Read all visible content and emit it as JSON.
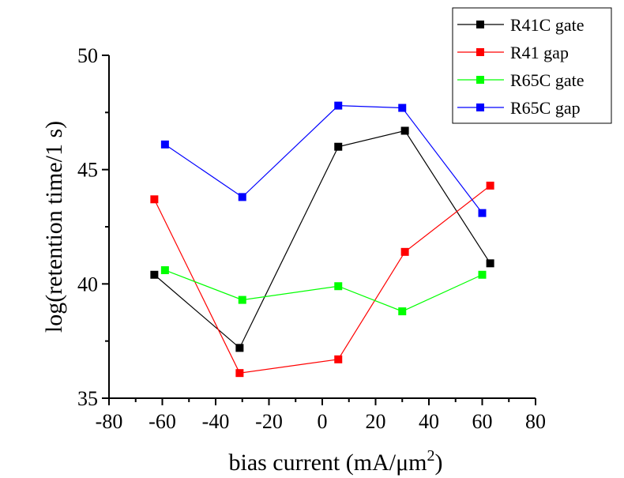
{
  "chart_data": {
    "type": "line",
    "title": "",
    "xlabel": "bias current (mA/μm",
    "xlabel_superscript": "2",
    "xlabel_suffix": ")",
    "ylabel": "log(retention time/1 s)",
    "xlim": [
      -80,
      80
    ],
    "ylim": [
      35,
      50
    ],
    "x_ticks": [
      "-80",
      "-60",
      "-40",
      "-20",
      "0",
      "20",
      "40",
      "60",
      "80"
    ],
    "y_ticks": [
      "35",
      "40",
      "45",
      "50"
    ],
    "grid": false,
    "legend_position": "top-right",
    "series": [
      {
        "name": "R41C gate",
        "color": "#000000",
        "marker": "square",
        "x": [
          -63,
          -31,
          6,
          31,
          63
        ],
        "y": [
          40.4,
          37.2,
          46.0,
          46.7,
          40.9
        ]
      },
      {
        "name": "R41 gap",
        "color": "#ff0000",
        "marker": "square",
        "x": [
          -63,
          -31,
          6,
          31,
          63
        ],
        "y": [
          43.7,
          36.1,
          36.7,
          41.4,
          44.3
        ]
      },
      {
        "name": "R65C gate",
        "color": "#00ff00",
        "marker": "square",
        "x": [
          -59,
          -30,
          6,
          30,
          60
        ],
        "y": [
          40.6,
          39.3,
          39.9,
          38.8,
          40.4
        ]
      },
      {
        "name": "R65C gap",
        "color": "#0000ff",
        "marker": "square",
        "x": [
          -59,
          -30,
          6,
          30,
          60
        ],
        "y": [
          46.1,
          43.8,
          47.8,
          47.7,
          43.1
        ]
      }
    ]
  }
}
